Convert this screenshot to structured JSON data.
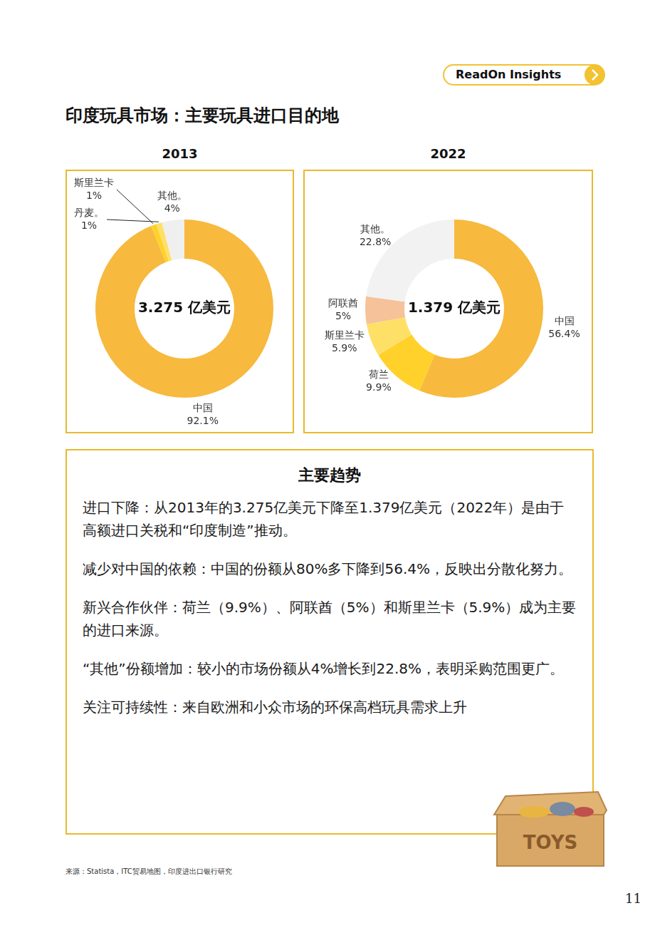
{
  "header": {
    "badge": "ReadOn Insights",
    "title": "印度玩具市场：主要玩具进口目的地"
  },
  "chart_data": [
    {
      "type": "doughnut",
      "title": "2013",
      "center_label": "3.275 亿美元",
      "categories": [
        "中国",
        "斯里兰卡",
        "丹麦。",
        "其他。"
      ],
      "values": [
        92.1,
        1,
        1,
        4
      ],
      "value_labels": [
        "92.1%",
        "1%",
        "1%",
        "4%"
      ],
      "colors": [
        "#F7B93E",
        "#FFD12A",
        "#FFE066",
        "#EFEFEF"
      ],
      "data_labels": true
    },
    {
      "type": "doughnut",
      "title": "2022",
      "center_label": "1.379 亿美元",
      "categories": [
        "中国",
        "荷兰",
        "斯里兰卡",
        "阿联酋",
        "其他。"
      ],
      "values": [
        56.4,
        9.9,
        5.9,
        5,
        22.8
      ],
      "value_labels": [
        "56.4%",
        "9.9%",
        "5.9%",
        "5%",
        "22.8%"
      ],
      "colors": [
        "#F7B93E",
        "#FFD12A",
        "#FFE066",
        "#F5C29A",
        "#F2F2F2"
      ],
      "data_labels": true
    }
  ],
  "trends": {
    "title": "主要趋势",
    "items": [
      "进口下降：从2013年的3.275亿美元下降至1.379亿美元（2022年）是由于高额进口关税和“印度制造”推动。",
      "减少对中国的依赖：中国的份额从80%多下降到56.4%，反映出分散化努力。",
      "新兴合作伙伴：荷兰（9.9%）、阿联酋（5%）和斯里兰卡（5.9%）成为主要的进口来源。",
      "“其他”份额增加：较小的市场份额从4%增长到22.8%，表明采购范围更广。",
      "关注可持续性：来自欧洲和小众市场的环保高档玩具需求上升"
    ]
  },
  "source": "来源：Statista，ITC贸易地图，印度进出口银行研究",
  "page_number": 11,
  "illustration_label": "TOYS"
}
